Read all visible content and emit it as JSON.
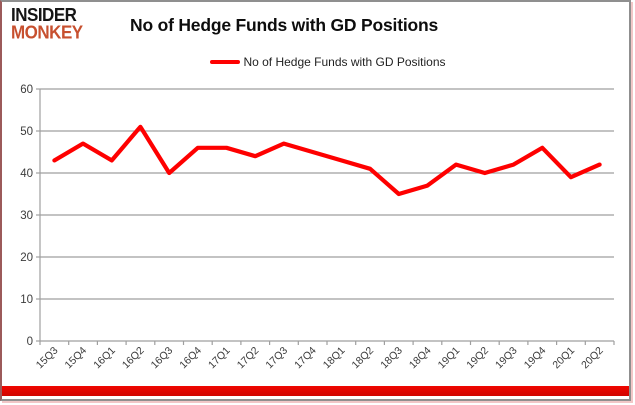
{
  "header": {
    "logo_line1": "INSIDER",
    "logo_line2": "MONKEY",
    "title": "No of Hedge Funds with GD Positions"
  },
  "legend": {
    "label": "No of Hedge Funds with GD Positions"
  },
  "chart_data": {
    "type": "line",
    "title": "No of Hedge Funds with GD Positions",
    "categories": [
      "15Q3",
      "15Q4",
      "16Q1",
      "16Q2",
      "16Q3",
      "16Q4",
      "17Q1",
      "17Q2",
      "17Q3",
      "17Q4",
      "18Q1",
      "18Q2",
      "18Q3",
      "18Q4",
      "19Q1",
      "19Q2",
      "19Q3",
      "19Q4",
      "20Q1",
      "20Q2"
    ],
    "series": [
      {
        "name": "No of Hedge Funds with GD Positions",
        "color": "#fe0000",
        "values": [
          43,
          47,
          43,
          51,
          40,
          46,
          46,
          44,
          47,
          45,
          43,
          41,
          35,
          37,
          42,
          40,
          42,
          46,
          39,
          42
        ]
      }
    ],
    "xlabel": "",
    "ylabel": "",
    "ylim": [
      0,
      60
    ],
    "ytick_step": 10,
    "yticks": [
      0,
      10,
      20,
      30,
      40,
      50,
      60
    ],
    "grid": true,
    "legend_position": "top"
  },
  "colors": {
    "line_red": "#fe0000",
    "logo_red": "#c7502f",
    "grid_gray": "#9f9f9f",
    "tick_text": "#3c3c3c",
    "bottom_bar_red": "#f00600"
  }
}
